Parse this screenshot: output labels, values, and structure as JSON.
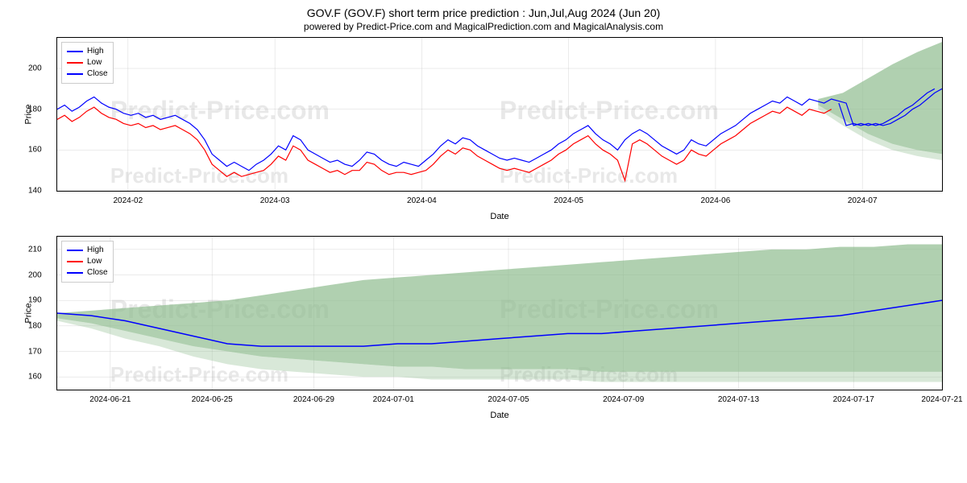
{
  "title": "GOV.F (GOV.F) short term price prediction : Jun,Jul,Aug 2024 (Jun 20)",
  "subtitle": "powered by Predict-Price.com and MagicalPrediction.com and MagicalAnalysis.com",
  "watermark_text": "Predict-Price.com",
  "chart1": {
    "type": "line",
    "ylabel": "Price",
    "xlabel": "Date",
    "ylim": [
      140,
      215
    ],
    "yticks": [
      140,
      160,
      180,
      200
    ],
    "xticks": [
      "2024-02",
      "2024-03",
      "2024-04",
      "2024-05",
      "2024-06",
      "2024-07"
    ],
    "xtick_positions": [
      0.08,
      0.246,
      0.412,
      0.578,
      0.744,
      0.91
    ],
    "grid_color": "#b0b0b0",
    "border_color": "#000000",
    "background_color": "#ffffff",
    "label_fontsize": 11,
    "tick_fontsize": 10,
    "legend": {
      "position": "upper-left",
      "items": [
        {
          "label": "High",
          "color": "#0000ff"
        },
        {
          "label": "Low",
          "color": "#ff0000"
        },
        {
          "label": "Close",
          "color": "#0000ff"
        }
      ]
    },
    "series": {
      "high": {
        "color": "#0000ff",
        "linewidth": 1.2,
        "data": [
          180,
          182,
          179,
          181,
          184,
          186,
          183,
          181,
          180,
          178,
          177,
          178,
          176,
          177,
          175,
          176,
          177,
          175,
          173,
          170,
          165,
          158,
          155,
          152,
          154,
          152,
          150,
          153,
          155,
          158,
          162,
          160,
          167,
          165,
          160,
          158,
          156,
          154,
          155,
          153,
          152,
          155,
          159,
          158,
          155,
          153,
          152,
          154,
          153,
          152,
          155,
          158,
          162,
          165,
          163,
          166,
          165,
          162,
          160,
          158,
          156,
          155,
          156,
          155,
          154,
          156,
          158,
          160,
          163,
          165,
          168,
          170,
          172,
          168,
          165,
          163,
          160,
          165,
          168,
          170,
          168,
          165,
          162,
          160,
          158,
          160,
          165,
          163,
          162,
          165,
          168,
          170,
          172,
          175,
          178,
          180,
          182,
          184,
          183,
          186,
          184,
          182,
          185,
          184,
          183,
          185,
          184,
          183,
          172,
          173,
          172,
          173,
          172,
          173,
          175,
          177,
          180,
          182,
          185,
          188,
          190
        ]
      },
      "low": {
        "color": "#ff0000",
        "linewidth": 1.2,
        "data": [
          175,
          177,
          174,
          176,
          179,
          181,
          178,
          176,
          175,
          173,
          172,
          173,
          171,
          172,
          170,
          171,
          172,
          170,
          168,
          165,
          160,
          153,
          150,
          147,
          149,
          147,
          148,
          149,
          150,
          153,
          157,
          155,
          162,
          160,
          155,
          153,
          151,
          149,
          150,
          148,
          150,
          150,
          154,
          153,
          150,
          148,
          149,
          149,
          148,
          149,
          150,
          153,
          157,
          160,
          158,
          161,
          160,
          157,
          155,
          153,
          151,
          150,
          151,
          150,
          149,
          151,
          153,
          155,
          158,
          160,
          163,
          165,
          167,
          163,
          160,
          158,
          155,
          145,
          163,
          165,
          163,
          160,
          157,
          155,
          153,
          155,
          160,
          158,
          157,
          160,
          163,
          165,
          167,
          170,
          173,
          175,
          177,
          179,
          178,
          181,
          179,
          177,
          180,
          179,
          178,
          180
        ]
      },
      "close": {
        "color": "#0000ff",
        "linewidth": 1.2,
        "data_from": 106,
        "data": [
          183,
          172,
          173,
          172,
          173,
          172,
          173,
          175,
          177,
          180,
          182,
          185,
          188,
          190
        ]
      },
      "prediction_band": {
        "color": "#8fbc8f",
        "fill_opacity": 0.7,
        "x_from": 0.86,
        "upper": [
          185,
          188,
          195,
          202,
          208,
          213
        ],
        "lower": [
          182,
          175,
          168,
          163,
          160,
          158
        ],
        "lower_light": [
          180,
          172,
          165,
          160,
          157,
          155
        ]
      }
    }
  },
  "chart2": {
    "type": "line",
    "ylabel": "Price",
    "xlabel": "Date",
    "ylim": [
      155,
      215
    ],
    "yticks": [
      160,
      170,
      180,
      190,
      200,
      210
    ],
    "xticks": [
      "2024-06-21",
      "2024-06-25",
      "2024-06-29",
      "2024-07-01",
      "2024-07-05",
      "2024-07-09",
      "2024-07-13",
      "2024-07-17",
      "2024-07-21"
    ],
    "xtick_positions": [
      0.06,
      0.175,
      0.29,
      0.38,
      0.51,
      0.64,
      0.77,
      0.9,
      1.0
    ],
    "grid_color": "#b0b0b0",
    "border_color": "#000000",
    "background_color": "#ffffff",
    "label_fontsize": 11,
    "tick_fontsize": 10,
    "legend": {
      "position": "upper-left",
      "items": [
        {
          "label": "High",
          "color": "#0000ff"
        },
        {
          "label": "Low",
          "color": "#ff0000"
        },
        {
          "label": "Close",
          "color": "#0000ff"
        }
      ]
    },
    "series": {
      "close": {
        "color": "#0000ff",
        "linewidth": 1.5,
        "data": [
          185,
          184,
          182,
          179,
          176,
          173,
          172,
          172,
          172,
          172,
          173,
          173,
          174,
          175,
          176,
          177,
          177,
          178,
          179,
          180,
          181,
          182,
          183,
          184,
          186,
          188,
          190
        ]
      },
      "prediction_band": {
        "color": "#8fbc8f",
        "fill_opacity": 0.7,
        "upper": [
          185,
          186,
          187,
          188,
          189,
          190,
          192,
          194,
          196,
          198,
          199,
          200,
          201,
          202,
          203,
          204,
          205,
          206,
          207,
          208,
          209,
          210,
          210,
          211,
          211,
          212,
          212
        ],
        "lower": [
          183,
          181,
          178,
          175,
          172,
          170,
          168,
          167,
          166,
          165,
          164,
          164,
          163,
          163,
          163,
          163,
          162,
          162,
          162,
          162,
          162,
          162,
          162,
          162,
          162,
          162,
          162
        ],
        "lower_light": [
          182,
          179,
          175,
          172,
          168,
          165,
          163,
          162,
          161,
          160,
          160,
          159,
          159,
          159,
          159,
          159,
          158,
          158,
          158,
          158,
          158,
          158,
          158,
          158,
          158,
          158,
          158
        ]
      }
    }
  }
}
